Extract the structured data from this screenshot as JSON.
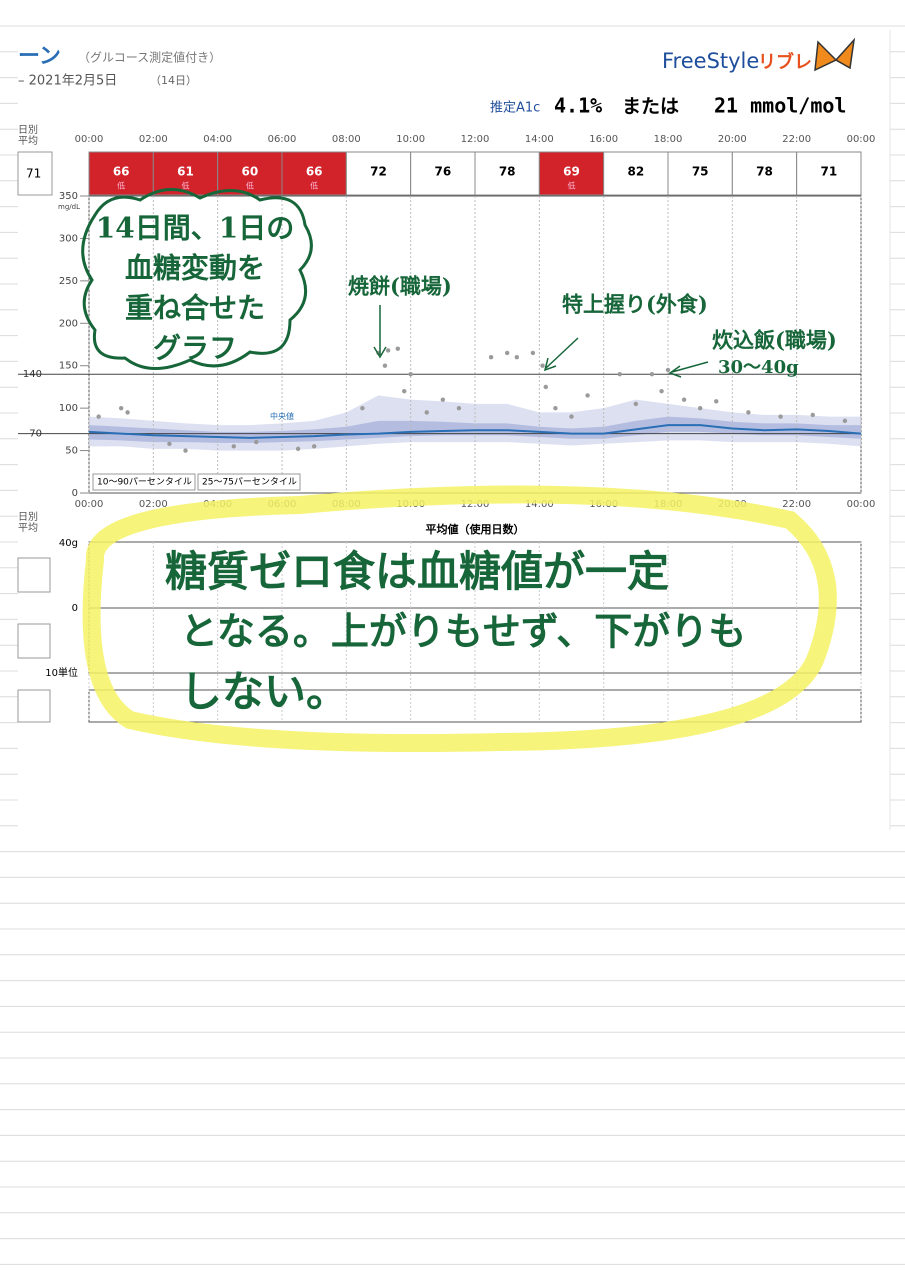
{
  "header": {
    "title_fragment": "ーン",
    "title_note": "（グルコース測定値付き）",
    "date_range": "– 2021年2月5日",
    "days": "（14日）",
    "brand": "FreeStyle",
    "brand_sub": "リブレ",
    "a1c_label": "推定A1c",
    "a1c_percent": "4.1%",
    "a1c_or": "または",
    "a1c_mmol": "21 mmol/mol"
  },
  "daily": {
    "label": [
      "日別",
      "平均"
    ],
    "overall": 71,
    "values": [
      66,
      61,
      60,
      66,
      72,
      76,
      78,
      69,
      82,
      75,
      78,
      71
    ],
    "flags": [
      "低",
      "低",
      "低",
      "低",
      null,
      null,
      null,
      "低",
      null,
      null,
      null,
      null
    ],
    "low_color": "#d2232a"
  },
  "chart_data": {
    "type": "line",
    "unit": "mg/dL",
    "xlim": [
      0,
      24
    ],
    "xticks": [
      {
        "value": 0,
        "label": "00:00"
      },
      {
        "value": 2,
        "label": "02:00"
      },
      {
        "value": 4,
        "label": "04:00"
      },
      {
        "value": 6,
        "label": "06:00"
      },
      {
        "value": 8,
        "label": "08:00"
      },
      {
        "value": 10,
        "label": "10:00"
      },
      {
        "value": 12,
        "label": "12:00"
      },
      {
        "value": 14,
        "label": "14:00"
      },
      {
        "value": 16,
        "label": "16:00"
      },
      {
        "value": 18,
        "label": "18:00"
      },
      {
        "value": 20,
        "label": "20:00"
      },
      {
        "value": 22,
        "label": "22:00"
      },
      {
        "value": 24,
        "label": "00:00"
      }
    ],
    "ylim": [
      0,
      350
    ],
    "yticks": [
      0,
      50,
      100,
      150,
      200,
      250,
      300,
      350
    ],
    "grid": true,
    "target": [
      70,
      140
    ],
    "x": [
      0,
      1,
      2,
      3,
      4,
      5,
      6,
      7,
      8,
      9,
      10,
      11,
      12,
      13,
      14,
      15,
      16,
      17,
      18,
      19,
      20,
      21,
      22,
      23,
      24
    ],
    "series": [
      {
        "name": "中央値",
        "color": "#2a6fb5",
        "values": [
          72,
          70,
          68,
          67,
          66,
          65,
          66,
          67,
          69,
          70,
          72,
          73,
          74,
          74,
          72,
          70,
          70,
          75,
          80,
          80,
          76,
          74,
          75,
          73,
          70
        ]
      }
    ],
    "bands": [
      {
        "name": "10〜90パーセンタイル",
        "color": "#d3d8ee",
        "lower": [
          55,
          55,
          52,
          52,
          50,
          50,
          50,
          52,
          55,
          58,
          60,
          60,
          60,
          60,
          58,
          56,
          58,
          60,
          62,
          62,
          60,
          60,
          60,
          58,
          55
        ],
        "upper": [
          90,
          88,
          85,
          82,
          80,
          80,
          82,
          85,
          95,
          115,
          110,
          108,
          105,
          105,
          95,
          95,
          100,
          110,
          105,
          100,
          95,
          92,
          92,
          90,
          90
        ]
      },
      {
        "name": "25〜75パーセンタイル",
        "color": "#aab4dc",
        "lower": [
          63,
          62,
          60,
          60,
          59,
          59,
          60,
          61,
          63,
          65,
          67,
          68,
          68,
          68,
          66,
          64,
          64,
          68,
          72,
          72,
          70,
          68,
          68,
          66,
          64
        ],
        "upper": [
          80,
          78,
          76,
          74,
          72,
          72,
          73,
          75,
          78,
          85,
          85,
          84,
          82,
          82,
          78,
          76,
          78,
          85,
          90,
          88,
          84,
          82,
          82,
          80,
          80
        ]
      }
    ],
    "points": {
      "color": "#9a9a9a",
      "x": [
        0.3,
        1,
        1.2,
        2.5,
        3,
        4.5,
        5.2,
        6.5,
        7,
        8.5,
        9,
        9.2,
        9.3,
        9.6,
        9.8,
        10,
        10.5,
        11,
        11.5,
        12.5,
        13,
        13.3,
        13.8,
        14.1,
        14.2,
        14.5,
        15,
        15.5,
        16.5,
        17,
        17.5,
        17.8,
        18,
        18.5,
        19,
        19.5,
        20.5,
        21.5,
        22.5,
        23.5
      ],
      "y": [
        90,
        100,
        95,
        58,
        50,
        55,
        60,
        52,
        55,
        100,
        165,
        150,
        168,
        170,
        120,
        140,
        95,
        110,
        100,
        160,
        165,
        160,
        165,
        150,
        125,
        100,
        90,
        115,
        140,
        105,
        140,
        120,
        145,
        110,
        100,
        108,
        95,
        90,
        92,
        85
      ]
    },
    "second_title": "平均値（使用日数）",
    "second_labels": [
      "40g",
      "0",
      "10単位"
    ]
  },
  "legend": {
    "median": "中央値"
  },
  "notes": {
    "cloud": [
      "14日間、1日の",
      "血糖変動を",
      "重ね合せた",
      "グラフ"
    ],
    "meal1": "焼餅(職場)",
    "meal2": "特上握り(外食)",
    "meal3": "炊込飯(職場)",
    "meal3_carbs": "30〜40g",
    "summary": [
      "糖質ゼロ食は血糖値が一定",
      "となる。上がりもせず、下がりも",
      "しない。"
    ]
  }
}
